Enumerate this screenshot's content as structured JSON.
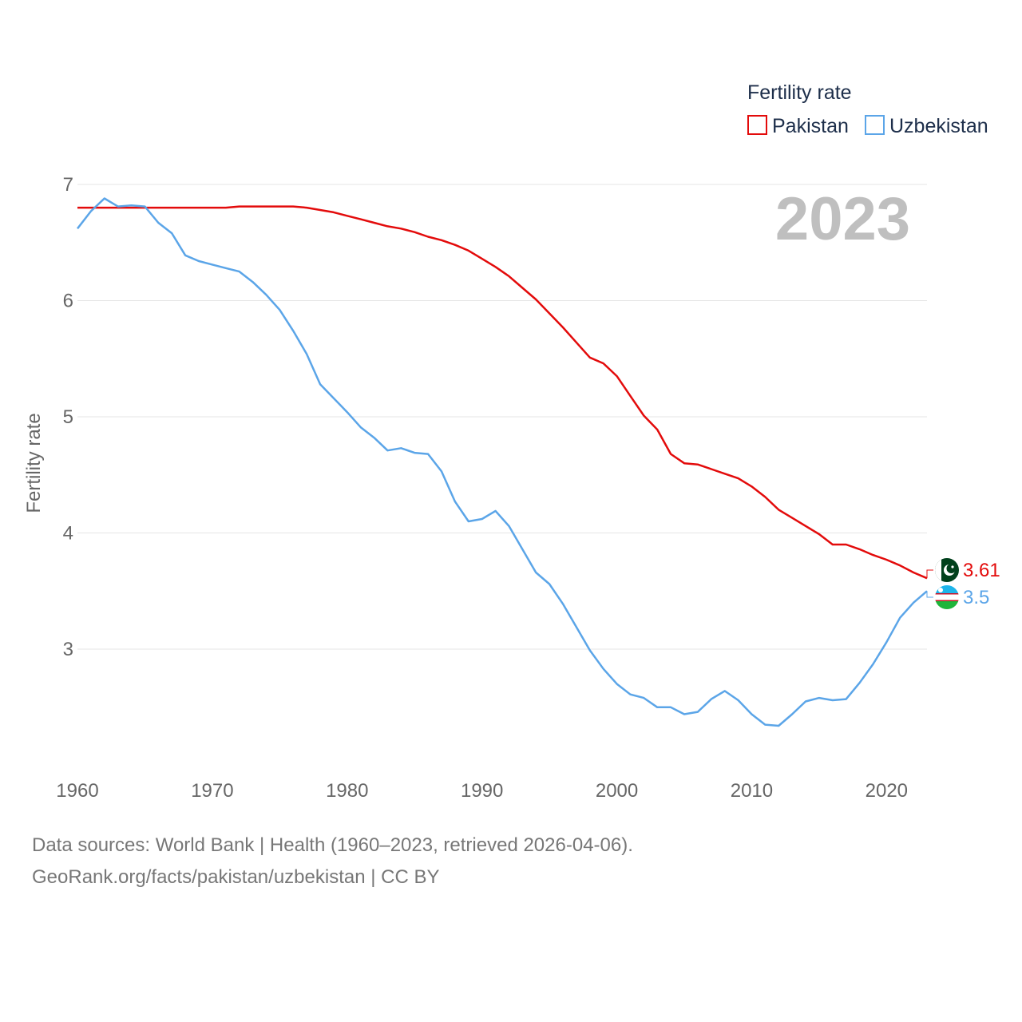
{
  "chart_data": {
    "type": "line",
    "title": "",
    "year_label": "2023",
    "xlabel": "",
    "ylabel": "Fertility rate",
    "xlim": [
      1960,
      2023
    ],
    "ylim": [
      2.0,
      7.1
    ],
    "x_ticks": [
      1960,
      1970,
      1980,
      1990,
      2000,
      2010,
      2020
    ],
    "y_ticks": [
      3,
      4,
      5,
      6,
      7
    ],
    "grid": true,
    "legend": {
      "title": "Fertility rate",
      "position": "top-right"
    },
    "series": [
      {
        "name": "Pakistan",
        "color": "#e30b0b",
        "end_label": "3.61",
        "flag_icon": "pakistan-flag-icon",
        "points": [
          [
            1960,
            6.8
          ],
          [
            1961,
            6.8
          ],
          [
            1962,
            6.8
          ],
          [
            1963,
            6.8
          ],
          [
            1964,
            6.8
          ],
          [
            1965,
            6.8
          ],
          [
            1966,
            6.8
          ],
          [
            1967,
            6.8
          ],
          [
            1968,
            6.8
          ],
          [
            1969,
            6.8
          ],
          [
            1970,
            6.8
          ],
          [
            1971,
            6.8
          ],
          [
            1972,
            6.81
          ],
          [
            1973,
            6.81
          ],
          [
            1974,
            6.81
          ],
          [
            1975,
            6.81
          ],
          [
            1976,
            6.81
          ],
          [
            1977,
            6.8
          ],
          [
            1978,
            6.78
          ],
          [
            1979,
            6.76
          ],
          [
            1980,
            6.73
          ],
          [
            1981,
            6.7
          ],
          [
            1982,
            6.67
          ],
          [
            1983,
            6.64
          ],
          [
            1984,
            6.62
          ],
          [
            1985,
            6.59
          ],
          [
            1986,
            6.55
          ],
          [
            1987,
            6.52
          ],
          [
            1988,
            6.48
          ],
          [
            1989,
            6.43
          ],
          [
            1990,
            6.36
          ],
          [
            1991,
            6.29
          ],
          [
            1992,
            6.21
          ],
          [
            1993,
            6.11
          ],
          [
            1994,
            6.01
          ],
          [
            1995,
            5.89
          ],
          [
            1996,
            5.77
          ],
          [
            1997,
            5.64
          ],
          [
            1998,
            5.51
          ],
          [
            1999,
            5.46
          ],
          [
            2000,
            5.35
          ],
          [
            2001,
            5.18
          ],
          [
            2002,
            5.01
          ],
          [
            2003,
            4.89
          ],
          [
            2004,
            4.68
          ],
          [
            2005,
            4.6
          ],
          [
            2006,
            4.59
          ],
          [
            2007,
            4.55
          ],
          [
            2008,
            4.51
          ],
          [
            2009,
            4.47
          ],
          [
            2010,
            4.4
          ],
          [
            2011,
            4.31
          ],
          [
            2012,
            4.2
          ],
          [
            2013,
            4.13
          ],
          [
            2014,
            4.06
          ],
          [
            2015,
            3.99
          ],
          [
            2016,
            3.9
          ],
          [
            2017,
            3.9
          ],
          [
            2018,
            3.86
          ],
          [
            2019,
            3.81
          ],
          [
            2020,
            3.77
          ],
          [
            2021,
            3.72
          ],
          [
            2022,
            3.66
          ],
          [
            2023,
            3.61
          ]
        ]
      },
      {
        "name": "Uzbekistan",
        "color": "#5ba5e8",
        "end_label": "3.5",
        "flag_icon": "uzbekistan-flag-icon",
        "points": [
          [
            1960,
            6.62
          ],
          [
            1961,
            6.77
          ],
          [
            1962,
            6.88
          ],
          [
            1963,
            6.81
          ],
          [
            1964,
            6.82
          ],
          [
            1965,
            6.81
          ],
          [
            1966,
            6.67
          ],
          [
            1967,
            6.58
          ],
          [
            1968,
            6.39
          ],
          [
            1969,
            6.34
          ],
          [
            1970,
            6.31
          ],
          [
            1971,
            6.28
          ],
          [
            1972,
            6.25
          ],
          [
            1973,
            6.16
          ],
          [
            1974,
            6.05
          ],
          [
            1975,
            5.92
          ],
          [
            1976,
            5.74
          ],
          [
            1977,
            5.54
          ],
          [
            1978,
            5.28
          ],
          [
            1979,
            5.16
          ],
          [
            1980,
            5.04
          ],
          [
            1981,
            4.91
          ],
          [
            1982,
            4.82
          ],
          [
            1983,
            4.71
          ],
          [
            1984,
            4.73
          ],
          [
            1985,
            4.69
          ],
          [
            1986,
            4.68
          ],
          [
            1987,
            4.53
          ],
          [
            1988,
            4.27
          ],
          [
            1989,
            4.1
          ],
          [
            1990,
            4.12
          ],
          [
            1991,
            4.19
          ],
          [
            1992,
            4.06
          ],
          [
            1993,
            3.86
          ],
          [
            1994,
            3.66
          ],
          [
            1995,
            3.56
          ],
          [
            1996,
            3.39
          ],
          [
            1997,
            3.19
          ],
          [
            1998,
            2.99
          ],
          [
            1999,
            2.83
          ],
          [
            2000,
            2.7
          ],
          [
            2001,
            2.61
          ],
          [
            2002,
            2.58
          ],
          [
            2003,
            2.5
          ],
          [
            2004,
            2.5
          ],
          [
            2005,
            2.44
          ],
          [
            2006,
            2.46
          ],
          [
            2007,
            2.57
          ],
          [
            2008,
            2.64
          ],
          [
            2009,
            2.56
          ],
          [
            2010,
            2.44
          ],
          [
            2011,
            2.35
          ],
          [
            2012,
            2.34
          ],
          [
            2013,
            2.44
          ],
          [
            2014,
            2.55
          ],
          [
            2015,
            2.58
          ],
          [
            2016,
            2.56
          ],
          [
            2017,
            2.57
          ],
          [
            2018,
            2.71
          ],
          [
            2019,
            2.87
          ],
          [
            2020,
            3.06
          ],
          [
            2021,
            3.27
          ],
          [
            2022,
            3.4
          ],
          [
            2023,
            3.5
          ]
        ]
      }
    ]
  },
  "footer": {
    "line1": "Data sources: World Bank | Health (1960–2023, retrieved 2026-04-06).",
    "line2": "GeoRank.org/facts/pakistan/uzbekistan | CC BY"
  }
}
